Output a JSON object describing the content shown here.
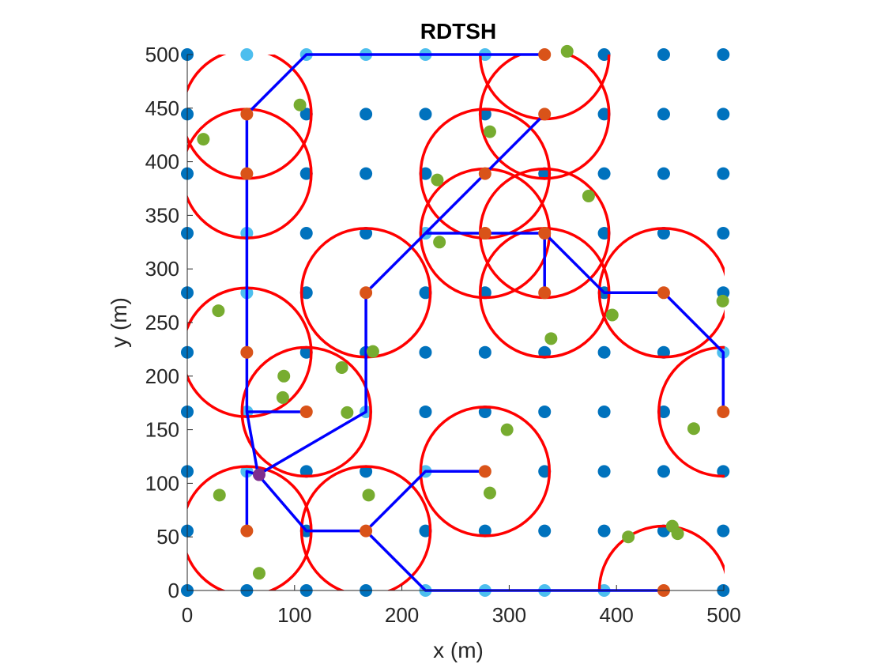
{
  "chart_data": {
    "type": "scatter",
    "title": "RDTSH",
    "xlabel": "x (m)",
    "ylabel": "y (m)",
    "xlim": [
      0,
      500
    ],
    "ylim": [
      0,
      500
    ],
    "xticks": [
      "0",
      "100",
      "200",
      "300",
      "400",
      "500"
    ],
    "yticks": [
      "0",
      "50",
      "100",
      "150",
      "200",
      "250",
      "300",
      "350",
      "400",
      "450",
      "500"
    ],
    "grid": false,
    "colors": {
      "grid_node": "#0072BD",
      "path_node": "#4DBEEE",
      "hover_node": "#D95319",
      "sensor": "#77AC30",
      "coverage": "#FF0000",
      "path": "#0000FF",
      "start": "#7E2F8E"
    },
    "grid_node_spacing": 55.5,
    "grid_node_extent": [
      0,
      500
    ],
    "path_nodes": [
      [
        55.5,
        500
      ],
      [
        111,
        500
      ],
      [
        166.5,
        500
      ],
      [
        222,
        500
      ],
      [
        277.5,
        500
      ],
      [
        333,
        500
      ],
      [
        55.5,
        444.4
      ],
      [
        55.5,
        388.9
      ],
      [
        55.5,
        333.3
      ],
      [
        55.5,
        277.8
      ],
      [
        55.5,
        222.2
      ],
      [
        55.5,
        166.7
      ],
      [
        55.5,
        111.1
      ],
      [
        166.5,
        166.7
      ],
      [
        222,
        111.1
      ],
      [
        222,
        333.3
      ],
      [
        222,
        0
      ],
      [
        277.5,
        0
      ],
      [
        333,
        0
      ],
      [
        388.5,
        0
      ],
      [
        499.5,
        222.2
      ]
    ],
    "hover_nodes": [
      [
        333,
        500
      ],
      [
        333,
        444.4
      ],
      [
        55.5,
        444.4
      ],
      [
        55.5,
        388.9
      ],
      [
        277.5,
        388.9
      ],
      [
        277.5,
        333.3
      ],
      [
        333,
        333.3
      ],
      [
        166.5,
        277.8
      ],
      [
        333,
        277.8
      ],
      [
        444,
        277.8
      ],
      [
        55.5,
        222.2
      ],
      [
        111,
        166.7
      ],
      [
        499.5,
        166.7
      ],
      [
        277.5,
        111.1
      ],
      [
        55.5,
        55.6
      ],
      [
        166.5,
        55.6
      ],
      [
        444,
        0
      ]
    ],
    "coverage_circles": [
      [
        55.5,
        444.4
      ],
      [
        55.5,
        388.9
      ],
      [
        333,
        500
      ],
      [
        333,
        444.4
      ],
      [
        277.5,
        388.9
      ],
      [
        277.5,
        333.3
      ],
      [
        333,
        333.3
      ],
      [
        166.5,
        277.8
      ],
      [
        333,
        277.8
      ],
      [
        444,
        277.8
      ],
      [
        55.5,
        222.2
      ],
      [
        111,
        166.7
      ],
      [
        499.5,
        166.7
      ],
      [
        277.5,
        111.1
      ],
      [
        55.5,
        55.6
      ],
      [
        166.5,
        55.6
      ],
      [
        444,
        0
      ]
    ],
    "coverage_radius": 60,
    "sensors": [
      [
        105,
        453
      ],
      [
        15,
        421
      ],
      [
        282,
        428
      ],
      [
        233,
        383
      ],
      [
        374,
        368
      ],
      [
        235,
        325
      ],
      [
        29,
        261
      ],
      [
        396,
        257
      ],
      [
        499,
        270
      ],
      [
        173,
        223
      ],
      [
        339,
        235
      ],
      [
        90,
        200
      ],
      [
        144,
        208
      ],
      [
        89,
        180
      ],
      [
        149,
        166
      ],
      [
        298,
        150
      ],
      [
        472,
        151
      ],
      [
        30,
        89
      ],
      [
        169,
        89
      ],
      [
        282,
        91
      ],
      [
        67,
        16
      ],
      [
        411,
        50
      ],
      [
        452,
        60
      ],
      [
        457,
        53
      ],
      [
        354,
        503
      ]
    ],
    "path": [
      [
        333,
        500
      ],
      [
        111,
        500
      ],
      [
        55.5,
        444.4
      ],
      [
        55.5,
        166.7
      ],
      [
        111,
        166.7
      ],
      [
        55.5,
        166.7
      ],
      [
        66,
        108
      ],
      [
        55.5,
        111.1
      ],
      [
        55.5,
        55.6
      ],
      [
        55.5,
        111.1
      ],
      [
        66,
        108
      ],
      [
        111,
        55.6
      ],
      [
        166.5,
        55.6
      ],
      [
        222,
        111.1
      ],
      [
        277.5,
        111.1
      ],
      [
        222,
        111.1
      ],
      [
        166.5,
        55.6
      ],
      [
        222,
        0
      ],
      [
        444,
        0
      ]
    ],
    "path2": [
      [
        66,
        108
      ],
      [
        166.5,
        166.7
      ],
      [
        166.5,
        277.8
      ],
      [
        222,
        333.3
      ],
      [
        333,
        444.4
      ]
    ],
    "path3": [
      [
        222,
        333.3
      ],
      [
        333,
        333.3
      ],
      [
        333,
        277.8
      ],
      [
        333,
        333.3
      ],
      [
        388.5,
        277.8
      ],
      [
        444,
        277.8
      ],
      [
        499.5,
        222.2
      ],
      [
        499.5,
        166.7
      ]
    ],
    "start_node": [
      67,
      108
    ]
  }
}
